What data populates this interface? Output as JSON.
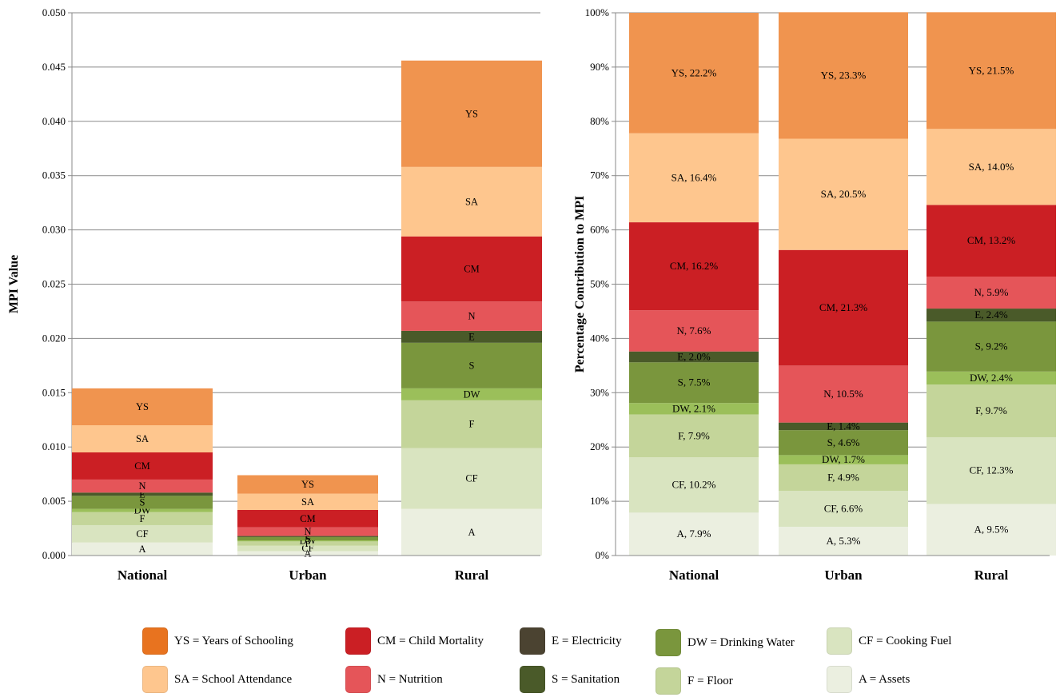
{
  "colors": {
    "YS": "#f0944f",
    "SA": "#fec68e",
    "CM": "#cb1f24",
    "N": "#e55559",
    "E": "#4a5a29",
    "S": "#7a963d",
    "DW": "#9bbf5a",
    "F": "#c4d59a",
    "CF": "#d9e4c0",
    "A": "#ebefe0"
  },
  "chart_data": [
    {
      "type": "bar",
      "stacked": true,
      "categories": [
        "National",
        "Urban",
        "Rural"
      ],
      "ylabel": "MPI Value",
      "ylim": [
        0,
        0.05
      ],
      "yticks": [
        "0.000",
        "0.005",
        "0.010",
        "0.015",
        "0.020",
        "0.025",
        "0.030",
        "0.035",
        "0.040",
        "0.045",
        "0.050"
      ],
      "grid": true,
      "series": [
        {
          "name": "A",
          "values": [
            0.0012,
            0.0004,
            0.0043
          ]
        },
        {
          "name": "CF",
          "values": [
            0.0016,
            0.0005,
            0.0056
          ]
        },
        {
          "name": "F",
          "values": [
            0.0012,
            0.0004,
            0.0044
          ]
        },
        {
          "name": "DW",
          "values": [
            0.0003,
            0.0001,
            0.0011
          ]
        },
        {
          "name": "S",
          "values": [
            0.0012,
            0.0003,
            0.0042
          ]
        },
        {
          "name": "E",
          "values": [
            0.0003,
            0.0001,
            0.0011
          ]
        },
        {
          "name": "N",
          "values": [
            0.0012,
            0.0008,
            0.0027
          ]
        },
        {
          "name": "CM",
          "values": [
            0.0025,
            0.0016,
            0.006
          ]
        },
        {
          "name": "SA",
          "values": [
            0.0025,
            0.0015,
            0.0064
          ]
        },
        {
          "name": "YS",
          "values": [
            0.0034,
            0.0017,
            0.0098
          ]
        }
      ],
      "bar_labels": [
        [
          "A",
          "CF",
          "F",
          "DW",
          "S",
          "E",
          "N",
          "CM",
          "SA",
          "YS"
        ],
        [
          "A",
          "CF",
          "F",
          "DW",
          "S",
          "E",
          "N",
          "CM",
          "SA",
          "YS"
        ],
        [
          "A",
          "CF",
          "F",
          "DW",
          "S",
          "E",
          "N",
          "CM",
          "SA",
          "YS"
        ]
      ]
    },
    {
      "type": "bar",
      "stacked": true,
      "categories": [
        "National",
        "Urban",
        "Rural"
      ],
      "ylabel": "Percentage Contribution to MPI",
      "ylim": [
        0,
        100
      ],
      "yticks": [
        "0%",
        "10%",
        "20%",
        "30%",
        "40%",
        "50%",
        "60%",
        "70%",
        "80%",
        "90%",
        "100%"
      ],
      "grid": true,
      "series": [
        {
          "name": "A",
          "values": [
            7.9,
            5.3,
            9.5
          ]
        },
        {
          "name": "CF",
          "values": [
            10.2,
            6.6,
            12.3
          ]
        },
        {
          "name": "F",
          "values": [
            7.9,
            4.9,
            9.7
          ]
        },
        {
          "name": "DW",
          "values": [
            2.1,
            1.7,
            2.4
          ]
        },
        {
          "name": "S",
          "values": [
            7.5,
            4.6,
            9.2
          ]
        },
        {
          "name": "E",
          "values": [
            2.0,
            1.4,
            2.4
          ]
        },
        {
          "name": "N",
          "values": [
            7.6,
            10.5,
            5.9
          ]
        },
        {
          "name": "CM",
          "values": [
            16.2,
            21.3,
            13.2
          ]
        },
        {
          "name": "SA",
          "values": [
            16.4,
            20.5,
            14.0
          ]
        },
        {
          "name": "YS",
          "values": [
            22.2,
            23.3,
            21.5
          ]
        }
      ],
      "bar_labels": [
        [
          "A, 7.9%",
          "CF, 10.2%",
          "F, 7.9%",
          "DW, 2.1%",
          "S, 7.5%",
          "E, 2.0%",
          "N, 7.6%",
          "CM, 16.2%",
          "SA, 16.4%",
          "YS, 22.2%"
        ],
        [
          "A, 5.3%",
          "CF, 6.6%",
          "F, 4.9%",
          "DW, 1.7%",
          "S, 4.6%",
          "E, 1.4%",
          "N, 10.5%",
          "CM, 21.3%",
          "SA, 20.5%",
          "YS, 23.3%"
        ],
        [
          "A, 9.5%",
          "CF, 12.3%",
          "F, 9.7%",
          "DW, 2.4%",
          "S, 9.2%",
          "E, 2.4%",
          "N, 5.9%",
          "CM, 13.2%",
          "SA, 14.0%",
          "YS, 21.5%"
        ]
      ]
    }
  ],
  "legend": {
    "placement": "bottom",
    "items": [
      {
        "key": "YS",
        "label": "YS = Years of Schooling",
        "swatch": "#e8731f"
      },
      {
        "key": "CM",
        "label": "CM = Child Mortality",
        "swatch": "#cb1f24"
      },
      {
        "key": "E",
        "label": "E = Electricity",
        "swatch": "#4b4331"
      },
      {
        "key": "DW",
        "label": "DW = Drinking Water",
        "swatch": "#7a963d"
      },
      {
        "key": "CF",
        "label": "CF = Cooking Fuel",
        "swatch": "#d9e4c0"
      },
      {
        "key": "SA",
        "label": "SA = School Attendance",
        "swatch": "#fec68e"
      },
      {
        "key": "N",
        "label": "N = Nutrition",
        "swatch": "#e55559"
      },
      {
        "key": "S",
        "label": "S = Sanitation",
        "swatch": "#4a5a29"
      },
      {
        "key": "F",
        "label": "F = Floor",
        "swatch": "#c4d59a"
      },
      {
        "key": "A",
        "label": "A = Assets",
        "swatch": "#ebefe0"
      }
    ]
  }
}
